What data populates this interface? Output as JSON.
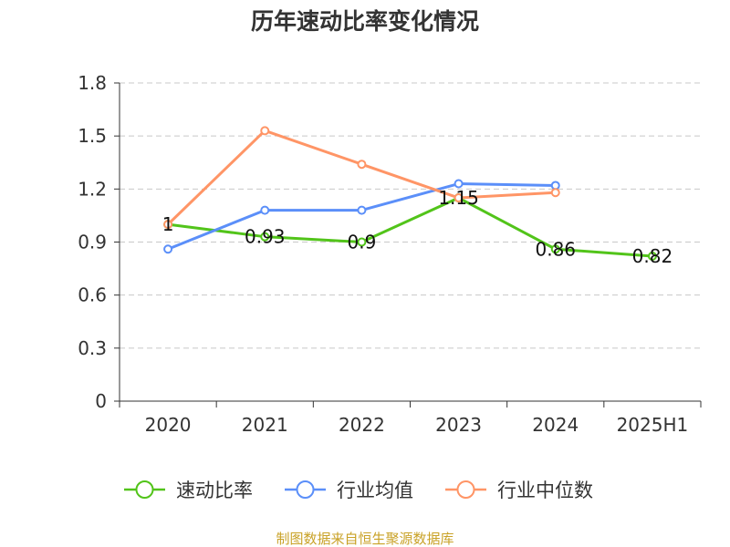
{
  "chart_data": {
    "type": "line",
    "title": "历年速动比率变化情况",
    "categories": [
      "2020",
      "2021",
      "2022",
      "2023",
      "2024",
      "2025H1"
    ],
    "ylim": [
      0,
      1.8
    ],
    "yticks": [
      "0",
      "0.3",
      "0.6",
      "0.9",
      "1.2",
      "1.5",
      "1.8"
    ],
    "grid": true,
    "legend_position": "bottom",
    "series": [
      {
        "name": "速动比率",
        "color": "#52c41a",
        "values": [
          1.0,
          0.93,
          0.9,
          1.15,
          0.86,
          0.82
        ],
        "labels": [
          "1",
          "0.93",
          "0.9",
          "1.15",
          "0.86",
          "0.82"
        ]
      },
      {
        "name": "行业均值",
        "color": "#5b8ff9",
        "values": [
          0.86,
          1.08,
          1.08,
          1.23,
          1.22,
          null
        ]
      },
      {
        "name": "行业中位数",
        "color": "#ff9566",
        "values": [
          1.0,
          1.53,
          1.34,
          1.15,
          1.18,
          null
        ]
      }
    ],
    "source": "制图数据来自恒生聚源数据库"
  }
}
